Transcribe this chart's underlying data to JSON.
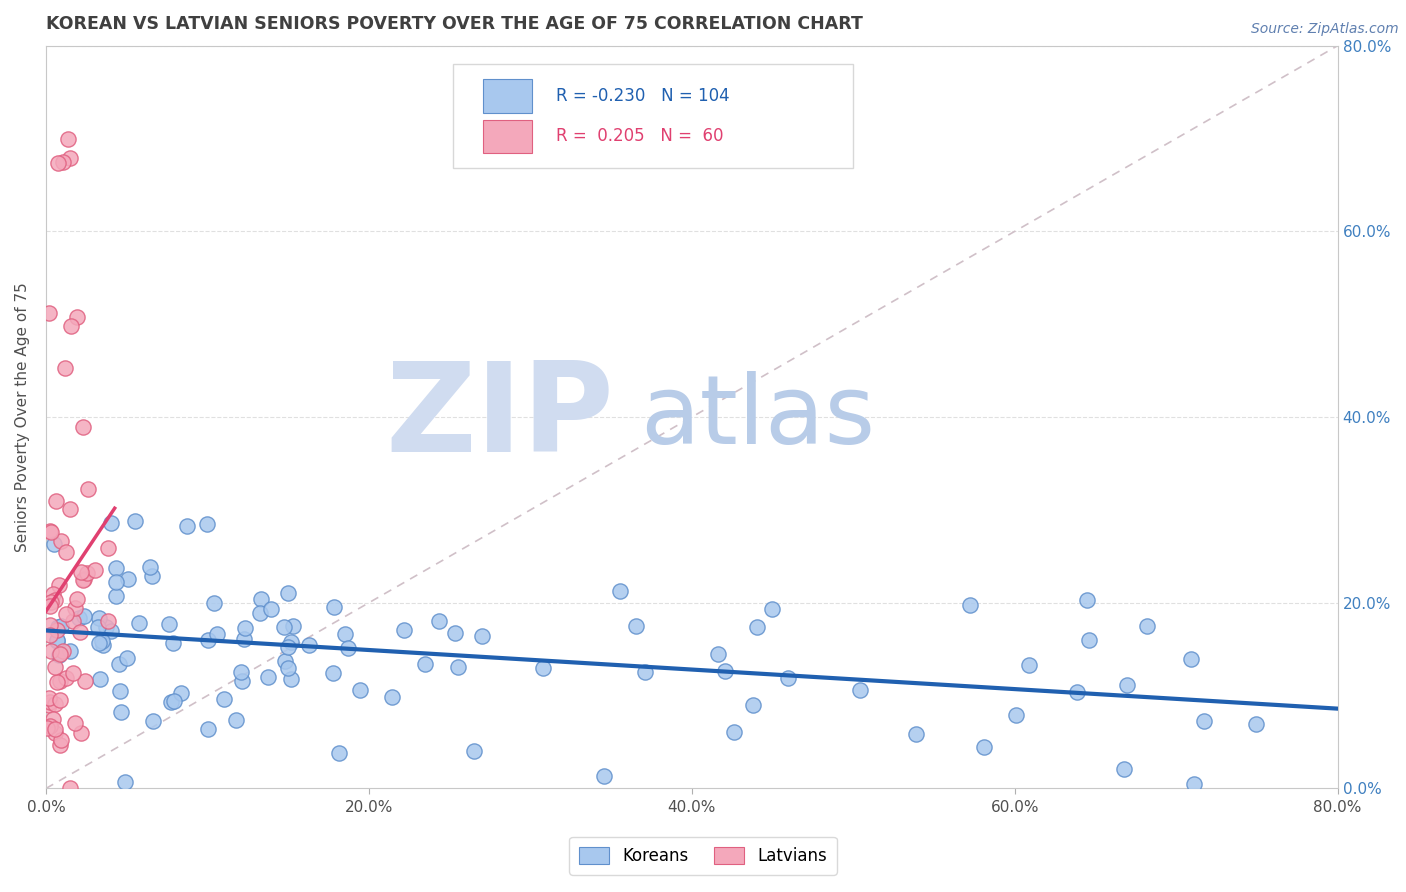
{
  "title": "KOREAN VS LATVIAN SENIORS POVERTY OVER THE AGE OF 75 CORRELATION CHART",
  "source_text": "Source: ZipAtlas.com",
  "ylabel": "Seniors Poverty Over the Age of 75",
  "xlim": [
    0.0,
    0.8
  ],
  "ylim": [
    0.0,
    0.8
  ],
  "xticks": [
    0.0,
    0.2,
    0.4,
    0.6,
    0.8
  ],
  "yticks": [
    0.0,
    0.2,
    0.4,
    0.6,
    0.8
  ],
  "xticklabels": [
    "0.0%",
    "20.0%",
    "40.0%",
    "60.0%",
    "80.0%"
  ],
  "yticklabels_right": [
    "0.0%",
    "20.0%",
    "40.0%",
    "60.0%",
    "80.0%"
  ],
  "korean_color": "#A8C8EE",
  "latvian_color": "#F4A8BB",
  "korean_edge_color": "#6090CC",
  "latvian_edge_color": "#E06080",
  "trend_korean_color": "#2060B0",
  "trend_latvian_color": "#E04070",
  "R_korean": -0.23,
  "N_korean": 104,
  "R_latvian": 0.205,
  "N_latvian": 60,
  "watermark_ZIP_color": "#D0DCF0",
  "watermark_atlas_color": "#B8CCE8",
  "background_color": "#FFFFFF",
  "title_color": "#404040",
  "axis_label_color": "#505050",
  "right_tick_color": "#4080C0",
  "grid_color": "#E0E0E0",
  "diag_color": "#D0C0C8",
  "legend_box_color": "#D8D8D8"
}
